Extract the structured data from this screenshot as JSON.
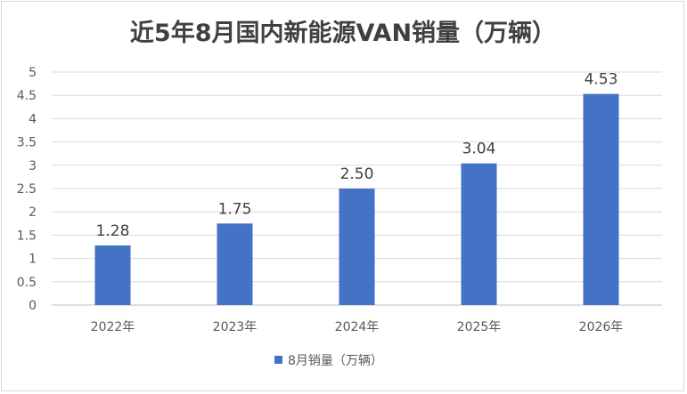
{
  "chart_data": {
    "type": "bar",
    "title": "近5年8月国内新能源VAN销量（万辆）",
    "xlabel": "",
    "ylabel": "",
    "categories": [
      "2022年",
      "2023年",
      "2024年",
      "2025年",
      "2026年"
    ],
    "series": [
      {
        "name": "8月销量（万辆）",
        "values": [
          1.28,
          1.75,
          2.5,
          3.04,
          4.53
        ],
        "labels": [
          "1.28",
          "1.75",
          "2.50",
          "3.04",
          "4.53"
        ],
        "color": "#4472c4"
      }
    ],
    "ylim": [
      0,
      5
    ],
    "yticks": [
      "0",
      "0.5",
      "1",
      "1.5",
      "2",
      "2.5",
      "3",
      "3.5",
      "4",
      "4.5",
      "5"
    ],
    "ytick_values": [
      0,
      0.5,
      1,
      1.5,
      2,
      2.5,
      3,
      3.5,
      4,
      4.5,
      5
    ],
    "grid": true,
    "legend": "bottom"
  }
}
